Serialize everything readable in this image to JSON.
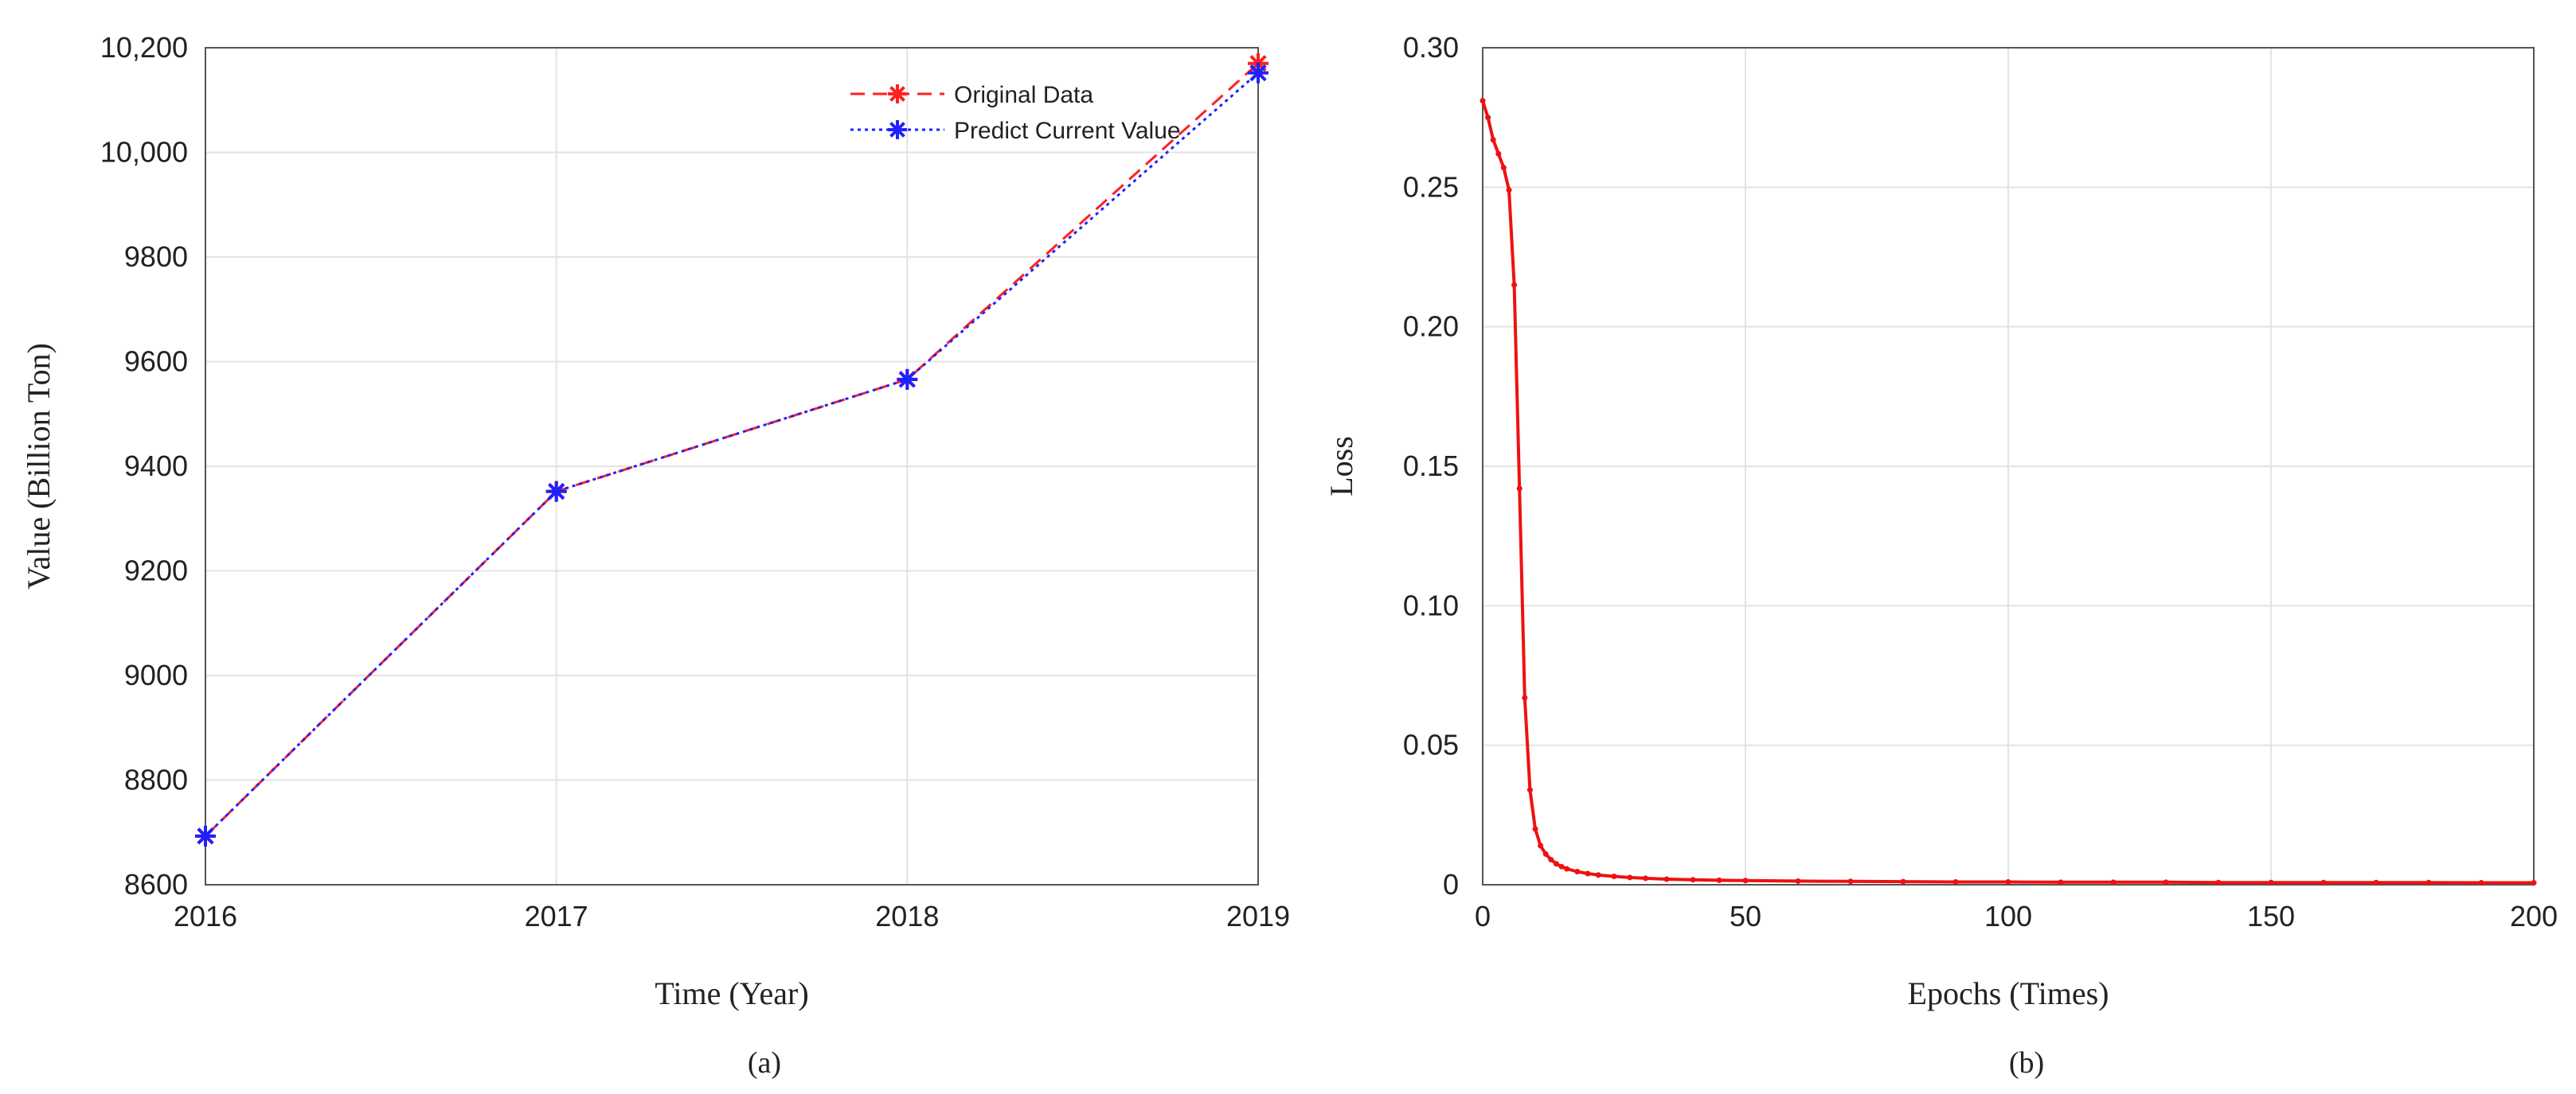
{
  "chart_data": [
    {
      "type": "line",
      "caption": "(a)",
      "title": "",
      "xlabel": "Time (Year)",
      "ylabel": "Value (Billion Ton)",
      "categories": [
        "2016",
        "2017",
        "2018",
        "2019"
      ],
      "xlim": [
        2016,
        2019
      ],
      "ylim": [
        8600,
        10200
      ],
      "yticks": [
        8600,
        8800,
        9000,
        9200,
        9400,
        9600,
        9800,
        10000,
        10200
      ],
      "ytick_labels": [
        "8600",
        "8800",
        "9000",
        "9200",
        "9400",
        "9600",
        "9800",
        "10,000",
        "10,200"
      ],
      "grid": true,
      "legend_position": "top-right",
      "series": [
        {
          "name": "Original Data",
          "color": "#ff2020",
          "style": "dashed",
          "marker": "star",
          "x": [
            2016,
            2017,
            2018,
            2019
          ],
          "values": [
            8693,
            9352,
            9566,
            10170
          ]
        },
        {
          "name": "Predict Current Value",
          "color": "#2020ff",
          "style": "dotted",
          "marker": "star",
          "x": [
            2016,
            2017,
            2018,
            2019
          ],
          "values": [
            8693,
            9352,
            9566,
            10152
          ]
        }
      ]
    },
    {
      "type": "line",
      "caption": "(b)",
      "title": "",
      "xlabel": "Epochs (Times)",
      "ylabel": "Loss",
      "xlim": [
        0,
        200
      ],
      "xticks": [
        0,
        50,
        100,
        150,
        200
      ],
      "xtick_labels": [
        "0",
        "50",
        "100",
        "150",
        "200"
      ],
      "ylim": [
        0,
        0.3
      ],
      "yticks": [
        0,
        0.05,
        0.1,
        0.15,
        0.2,
        0.25,
        0.3
      ],
      "ytick_labels": [
        "0",
        "0.05",
        "0.10",
        "0.15",
        "0.20",
        "0.25",
        "0.30"
      ],
      "grid": true,
      "series": [
        {
          "name": "Loss",
          "color": "#ee1111",
          "x": [
            0,
            1,
            2,
            3,
            4,
            5,
            6,
            7,
            8,
            9,
            10,
            11,
            12,
            13,
            14,
            15,
            16,
            18,
            20,
            22,
            25,
            28,
            31,
            35,
            40,
            45,
            50,
            60,
            70,
            80,
            90,
            100,
            110,
            120,
            130,
            140,
            150,
            160,
            170,
            180,
            190,
            200
          ],
          "values": [
            0.281,
            0.275,
            0.267,
            0.262,
            0.257,
            0.249,
            0.215,
            0.142,
            0.067,
            0.034,
            0.02,
            0.014,
            0.011,
            0.009,
            0.0075,
            0.0065,
            0.0057,
            0.0047,
            0.004,
            0.0035,
            0.003,
            0.0026,
            0.0023,
            0.002,
            0.0018,
            0.0016,
            0.0015,
            0.0013,
            0.0012,
            0.0011,
            0.001,
            0.001,
            0.0009,
            0.0009,
            0.0009,
            0.0008,
            0.0008,
            0.0008,
            0.0008,
            0.0008,
            0.0007,
            0.0007
          ]
        }
      ]
    }
  ]
}
